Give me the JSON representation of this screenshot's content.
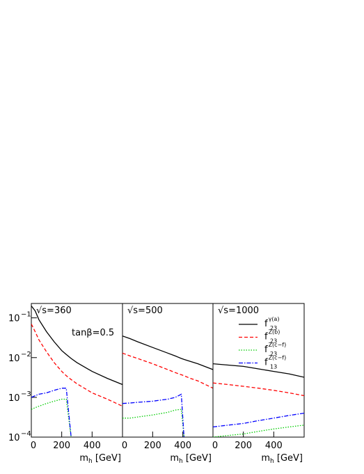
{
  "chart_data": [
    {
      "type": "line",
      "title": "√s=360",
      "annotation": "tanβ=0.5",
      "log_y": true,
      "xlabel": [
        "m",
        "h",
        " [GeV]"
      ],
      "xlim": [
        0,
        600
      ],
      "ylim": [
        0.0001,
        0.23
      ],
      "xticks": [
        0,
        200,
        400
      ],
      "yticks": [
        {
          "value": 0.1,
          "label": "10",
          "exponent": "−1"
        },
        {
          "value": 0.01,
          "label": "10",
          "exponent": "−2"
        },
        {
          "value": 0.001,
          "label": "10",
          "exponent": "−3"
        },
        {
          "value": 0.0001,
          "label": "10",
          "exponent": "−4"
        }
      ],
      "x": [
        0,
        25,
        50,
        100,
        150,
        200,
        230,
        262,
        300,
        400,
        500,
        600
      ],
      "series": [
        {
          "color": "#000000",
          "dash": "solid",
          "values": [
            0.2,
            0.15,
            0.09,
            0.045,
            0.025,
            0.015,
            0.012,
            0.0095,
            0.0075,
            0.0045,
            0.003,
            0.0021
          ]
        },
        {
          "color": "#ff0000",
          "dash": "dashed",
          "values": [
            0.07,
            0.045,
            0.028,
            0.014,
            0.0075,
            0.0045,
            0.0035,
            0.0028,
            0.0022,
            0.0013,
            0.0009,
            0.0006
          ]
        },
        {
          "color": "#00cc00",
          "dash": "dotted",
          "values": [
            0.0005,
            0.00055,
            0.0006,
            0.0007,
            0.0008,
            0.0009,
            0.0009,
            0.0001,
            null,
            null,
            null,
            null
          ]
        },
        {
          "color": "#0000ff",
          "dash": "dashdot",
          "values": [
            0.001,
            0.0011,
            0.0012,
            0.0013,
            0.0015,
            0.0017,
            0.0017,
            0.0001,
            null,
            null,
            null,
            null
          ]
        }
      ]
    },
    {
      "type": "line",
      "title": "√s=500",
      "log_y": true,
      "xlabel": [
        "m",
        "h",
        " [GeV]"
      ],
      "xlim": [
        0,
        600
      ],
      "ylim": [
        0.0001,
        0.23
      ],
      "xticks": [
        0,
        200,
        400
      ],
      "x": [
        0,
        50,
        100,
        200,
        300,
        350,
        390,
        408,
        450,
        500,
        600
      ],
      "series": [
        {
          "color": "#000000",
          "dash": "solid",
          "values": [
            0.035,
            0.03,
            0.025,
            0.018,
            0.013,
            0.011,
            0.0095,
            0.009,
            0.008,
            0.007,
            0.005
          ]
        },
        {
          "color": "#ff0000",
          "dash": "dashed",
          "values": [
            0.013,
            0.011,
            0.0095,
            0.007,
            0.005,
            0.0042,
            0.0037,
            0.0035,
            0.003,
            0.0026,
            0.0017
          ]
        },
        {
          "color": "#00cc00",
          "dash": "dotted",
          "values": [
            0.0003,
            0.0003,
            0.00032,
            0.00036,
            0.00042,
            0.00048,
            0.0005,
            0.0001,
            null,
            null,
            null
          ]
        },
        {
          "color": "#0000ff",
          "dash": "dashdot",
          "values": [
            0.0007,
            0.00072,
            0.00075,
            0.0008,
            0.0009,
            0.001,
            0.0012,
            0.0001,
            null,
            null,
            null
          ]
        }
      ]
    },
    {
      "type": "line",
      "title": "√s=1000",
      "log_y": true,
      "legend": true,
      "xlabel": [
        "m",
        "h",
        " [GeV]"
      ],
      "xlim": [
        0,
        600
      ],
      "ylim": [
        0.0001,
        0.23
      ],
      "xticks": [
        0,
        200,
        400
      ],
      "x": [
        0,
        100,
        200,
        300,
        400,
        500,
        600
      ],
      "series": [
        {
          "name": "f",
          "sup": "γ(a)",
          "sub": "23",
          "color": "#000000",
          "dash": "solid",
          "values": [
            0.007,
            0.0065,
            0.006,
            0.0052,
            0.0045,
            0.0039,
            0.0032
          ]
        },
        {
          "name": "f",
          "sup": "Z(b)",
          "sub": "23",
          "color": "#ff0000",
          "dash": "dashed",
          "values": [
            0.0023,
            0.0021,
            0.0019,
            0.0017,
            0.0015,
            0.0013,
            0.0011
          ]
        },
        {
          "name": "f",
          "sup": "Z(c−f)",
          "sub": "23",
          "color": "#00cc00",
          "dash": "dotted",
          "values": [
            0.0001,
            0.00011,
            0.00012,
            0.00014,
            0.00016,
            0.00018,
            0.0002
          ]
        },
        {
          "name": "f",
          "sup": "Z(c−f)",
          "sub": "13",
          "color": "#0000ff",
          "dash": "dashdot",
          "values": [
            0.00018,
            0.0002,
            0.00022,
            0.00026,
            0.0003,
            0.00035,
            0.0004
          ]
        }
      ]
    }
  ]
}
